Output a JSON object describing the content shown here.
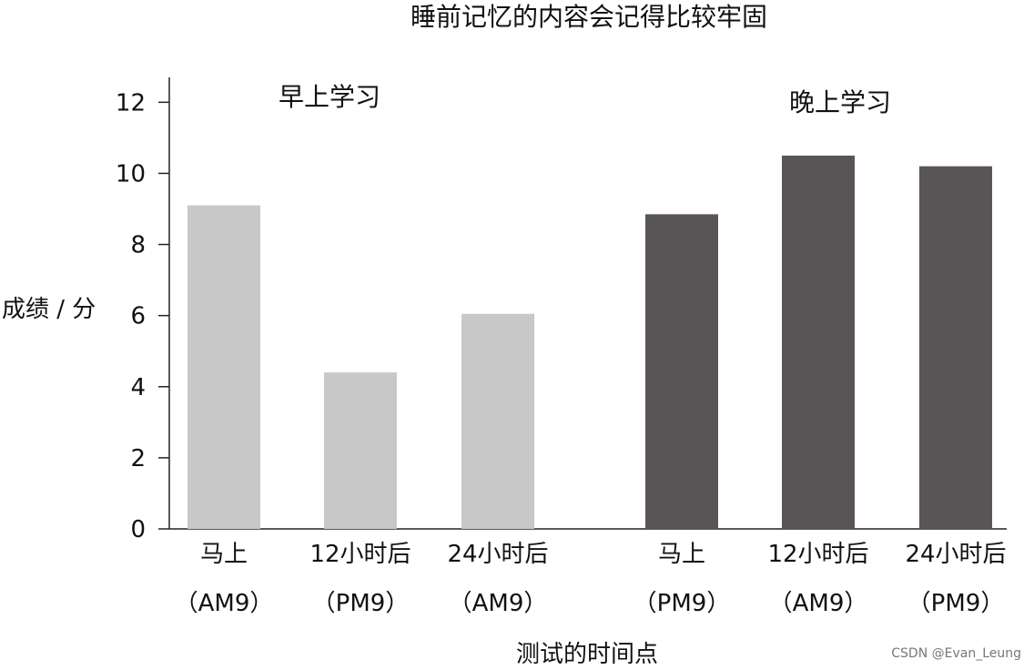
{
  "chart_data": {
    "type": "bar",
    "title": "睡前记忆的内容会记得比较牢固",
    "xlabel": "测试的时间点",
    "ylabel": "成绩 / 分",
    "ylim": [
      0,
      12.7
    ],
    "yticks": [
      0,
      2,
      4,
      6,
      8,
      10,
      12
    ],
    "grid": false,
    "legend": "none",
    "groups": [
      {
        "label": "早上学习",
        "color": "#c8c8c8",
        "bars": [
          {
            "category": "马上",
            "time": "（AM9）",
            "value": 9.1
          },
          {
            "category": "12小时后",
            "time": "（PM9）",
            "value": 4.4
          },
          {
            "category": "24小时后",
            "time": "（AM9）",
            "value": 6.05
          }
        ]
      },
      {
        "label": "晚上学习",
        "color": "#595556",
        "bars": [
          {
            "category": "马上",
            "time": "（PM9）",
            "value": 8.85
          },
          {
            "category": "12小时后",
            "time": "（AM9）",
            "value": 10.5
          },
          {
            "category": "24小时后",
            "time": "（PM9）",
            "value": 10.2
          }
        ]
      }
    ]
  },
  "watermark": "CSDN @Evan_Leung"
}
